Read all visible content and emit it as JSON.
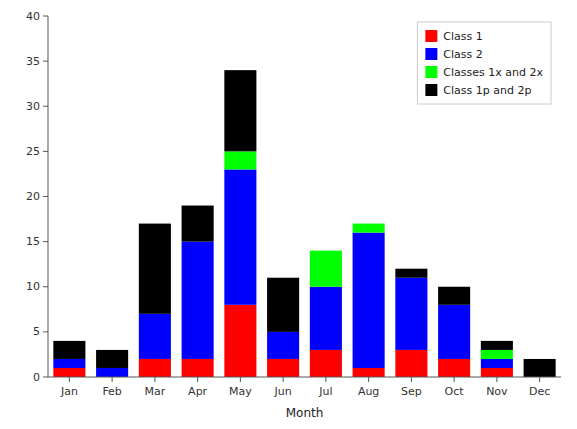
{
  "chart_data": {
    "type": "bar",
    "stacked": true,
    "categories": [
      "Jan",
      "Feb",
      "Mar",
      "Apr",
      "May",
      "Jun",
      "Jul",
      "Aug",
      "Sep",
      "Oct",
      "Nov",
      "Dec"
    ],
    "series": [
      {
        "name": "Class 1",
        "color": "#ff0000",
        "values": [
          1,
          0,
          2,
          2,
          8,
          2,
          3,
          1,
          3,
          2,
          1,
          0
        ]
      },
      {
        "name": "Class 2",
        "color": "#0000ff",
        "values": [
          1,
          1,
          5,
          13,
          15,
          3,
          7,
          15,
          8,
          6,
          1,
          0
        ]
      },
      {
        "name": "Classes 1x and 2x",
        "color": "#00ff00",
        "values": [
          0,
          0,
          0,
          0,
          2,
          0,
          4,
          1,
          0,
          0,
          1,
          0
        ]
      },
      {
        "name": "Class 1p and 2p",
        "color": "#000000",
        "values": [
          2,
          2,
          10,
          4,
          9,
          6,
          0,
          0,
          1,
          2,
          1,
          2
        ]
      }
    ],
    "xlabel": "Month",
    "ylim": [
      0,
      40
    ],
    "yticks": [
      0,
      5,
      10,
      15,
      20,
      25,
      30,
      35,
      40
    ],
    "grid": false,
    "legend": "upper right"
  }
}
